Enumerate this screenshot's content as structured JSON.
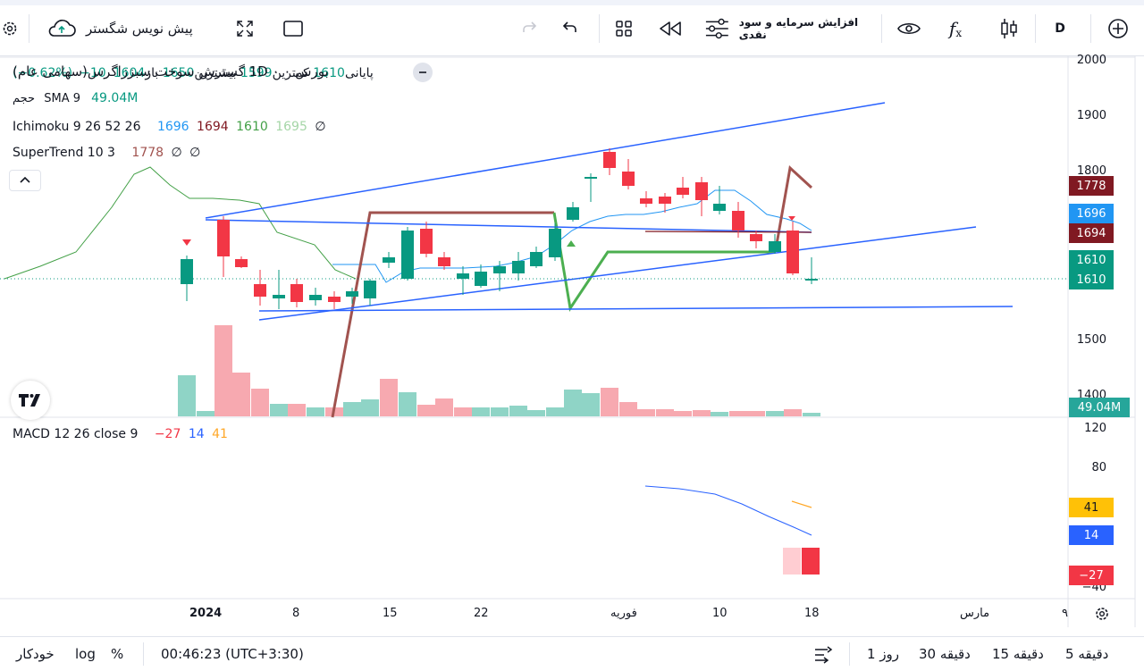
{
  "toolbar": {
    "publish_label": "پیش نویس شگستر",
    "indicator_label": "افزایش سرمایه و سود نقدی",
    "interval": "D"
  },
  "legend": {
    "title": "بورس ۰ 1D ۰ گسترش سوخت سبززاگرس(سهامی عام)",
    "baz_label": "باز",
    "baz": "1604",
    "high_label": "بیشترین",
    "high": "1650",
    "low_label": "کمترین",
    "low": "1599",
    "close_label": "پایانی",
    "close": "1610",
    "change": "−10",
    "change_pct": "(−0.62%)",
    "volume_label": "حجم",
    "sma_label": "SMA 9",
    "sma_value": "49.04M",
    "ichimoku_label": "Ichimoku 9 26 52 26",
    "ichi_v1": "1696",
    "ichi_v2": "1694",
    "ichi_v3": "1610",
    "ichi_v4": "1695",
    "supertrend_label": "SuperTrend 10 3",
    "st_value": "1778",
    "null_sign": "∅",
    "macd_label": "MACD 12 26 close 9",
    "macd_v1": "−27",
    "macd_v2": "14",
    "macd_v3": "41"
  },
  "price_axis": {
    "ticks": [
      "2000",
      "1900",
      "1800",
      "1500",
      "1400"
    ],
    "macd_ticks": [
      "120",
      "80",
      "−40"
    ]
  },
  "price_tags": {
    "supertrend": "1778",
    "tenkan": "1696",
    "kijun": "1694",
    "close1": "1610",
    "close2": "1610",
    "volume": "49.04M",
    "macd_signal": "41",
    "macd_line": "14",
    "macd_hist": "−27"
  },
  "date_axis": [
    "2024",
    "8",
    "15",
    "22",
    "فوریه",
    "10",
    "18",
    "مارس",
    "۹"
  ],
  "bottom": {
    "tf_5d": "5 دقیقه",
    "tf_15d": "15 دقیقه",
    "tf_30d": "30 دقیقه",
    "tf_1r": "1 روز",
    "time": "00:46:23 (UTC+3:30)",
    "pct": "%",
    "log": "log",
    "auto": "خودکار"
  },
  "colors": {
    "up": "#089981",
    "down": "#f23645",
    "up_vol": "#8fd4c6",
    "down_vol": "#f7a9b0",
    "trend_blue": "#2962ff",
    "ichi_tenkan": "#2196f3",
    "ichi_kijun": "#801922",
    "ichi_lagging": "#43a047",
    "supertrend": "#a1534f",
    "supertrend_green": "#4caf50"
  }
}
